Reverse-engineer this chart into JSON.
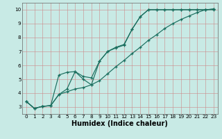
{
  "xlabel": "Humidex (Indice chaleur)",
  "xlim": [
    -0.5,
    23.5
  ],
  "ylim": [
    2.5,
    10.5
  ],
  "xtick_labels": [
    "0",
    "1",
    "2",
    "3",
    "4",
    "5",
    "6",
    "7",
    "8",
    "9",
    "10",
    "11",
    "12",
    "13",
    "14",
    "15",
    "16",
    "17",
    "18",
    "19",
    "20",
    "21",
    "22",
    "23"
  ],
  "xticks": [
    0,
    1,
    2,
    3,
    4,
    5,
    6,
    7,
    8,
    9,
    10,
    11,
    12,
    13,
    14,
    15,
    16,
    17,
    18,
    19,
    20,
    21,
    22,
    23
  ],
  "yticks": [
    3,
    4,
    5,
    6,
    7,
    8,
    9,
    10
  ],
  "bg_color": "#c8eae5",
  "grid_color": "#b0b0b0",
  "line_color": "#1a6e5e",
  "line1_x": [
    0,
    1,
    2,
    3,
    4,
    5,
    6,
    7,
    8,
    9,
    10,
    11,
    12,
    13,
    14,
    15,
    16,
    17,
    18,
    19,
    20,
    21,
    22,
    23
  ],
  "line1_y": [
    3.4,
    2.9,
    3.05,
    3.1,
    5.3,
    5.5,
    5.55,
    5.2,
    5.1,
    6.3,
    7.0,
    7.3,
    7.5,
    8.6,
    9.5,
    10.0,
    10.0,
    10.0,
    10.0,
    10.0,
    10.0,
    10.0,
    10.0,
    10.0
  ],
  "line2_x": [
    0,
    1,
    2,
    3,
    4,
    5,
    6,
    7,
    8,
    9,
    10,
    11,
    12,
    13,
    14,
    15,
    16,
    17,
    18,
    19,
    20,
    21,
    22,
    23
  ],
  "line2_y": [
    3.4,
    2.9,
    3.05,
    3.1,
    3.9,
    4.3,
    5.55,
    5.0,
    4.6,
    6.3,
    7.0,
    7.25,
    7.45,
    8.6,
    9.5,
    10.0,
    10.0,
    10.0,
    10.0,
    10.0,
    10.0,
    10.0,
    10.0,
    10.05
  ],
  "line3_x": [
    0,
    1,
    2,
    3,
    4,
    5,
    6,
    7,
    8,
    9,
    10,
    11,
    12,
    13,
    14,
    15,
    16,
    17,
    18,
    19,
    20,
    21,
    22,
    23
  ],
  "line3_y": [
    3.4,
    2.9,
    3.05,
    3.1,
    3.9,
    4.1,
    4.3,
    4.4,
    4.6,
    4.9,
    5.4,
    5.9,
    6.35,
    6.85,
    7.3,
    7.8,
    8.2,
    8.65,
    9.0,
    9.3,
    9.55,
    9.8,
    10.0,
    10.05
  ],
  "label_fontsize": 6.5,
  "tick_fontsize": 5.2,
  "xlabel_fontsize": 7.0
}
